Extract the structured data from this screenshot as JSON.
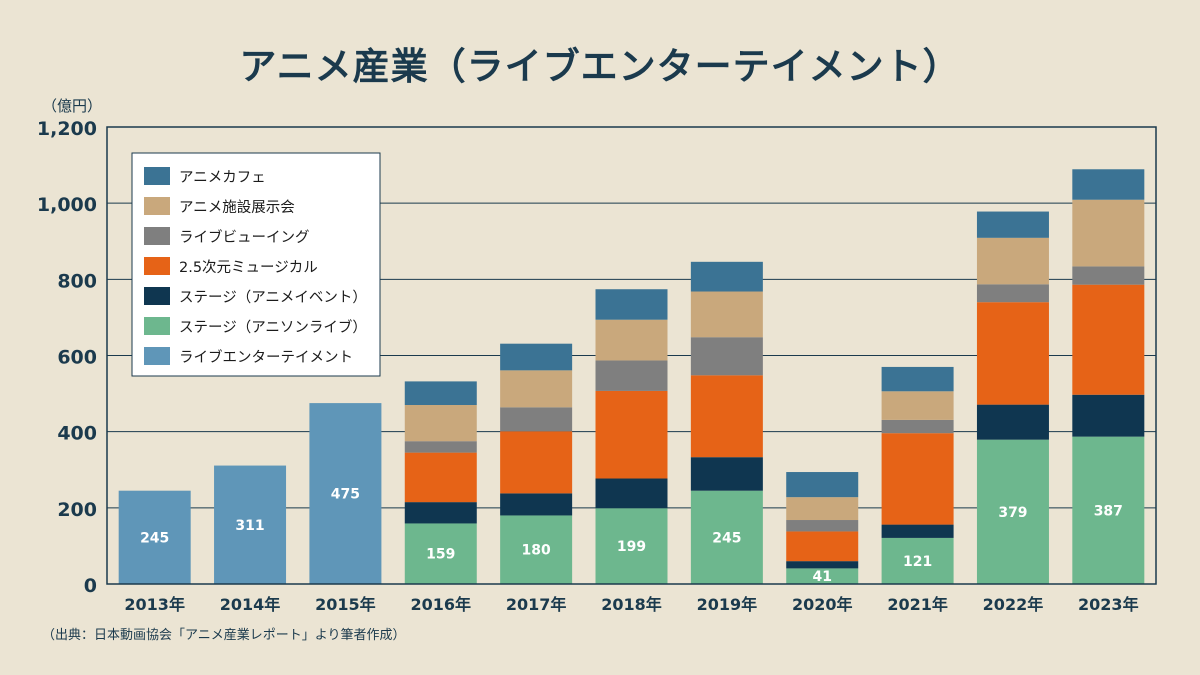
{
  "title": "アニメ産業（ライブエンターテイメント）",
  "unit_label": "（億円）",
  "source_note": "（出典：日本動画協会「アニメ産業レポート」より筆者作成）",
  "chart_data": {
    "type": "bar",
    "stacked": true,
    "title": "アニメ産業（ライブエンターテイメント）",
    "ylabel": "（億円）",
    "xlabel": "",
    "ylim": [
      0,
      1200
    ],
    "yticks": [
      0,
      200,
      400,
      600,
      800,
      1000,
      1200
    ],
    "ytick_labels": [
      "0",
      "200",
      "400",
      "600",
      "800",
      "1,000",
      "1,200"
    ],
    "grid": true,
    "legend_position": "top-left",
    "categories": [
      "2013年",
      "2014年",
      "2015年",
      "2016年",
      "2017年",
      "2018年",
      "2019年",
      "2020年",
      "2021年",
      "2022年",
      "2023年"
    ],
    "series": [
      {
        "name": "ライブエンターテイメント",
        "color": "#5f96b8",
        "values": [
          245,
          311,
          475,
          0,
          0,
          0,
          0,
          0,
          0,
          0,
          0
        ]
      },
      {
        "name": "ステージ（アニソンライブ）",
        "color": "#6db78e",
        "values": [
          0,
          0,
          0,
          159,
          180,
          199,
          245,
          41,
          121,
          379,
          387
        ]
      },
      {
        "name": "ステージ（アニメイベント）",
        "color": "#0f3650",
        "values": [
          0,
          0,
          0,
          56,
          58,
          78,
          88,
          19,
          35,
          92,
          110
        ]
      },
      {
        "name": "2.5次元ミュージカル",
        "color": "#e66317",
        "values": [
          0,
          0,
          0,
          130,
          163,
          230,
          215,
          78,
          240,
          269,
          289
        ]
      },
      {
        "name": "ライブビューイング",
        "color": "#7f7f7f",
        "values": [
          0,
          0,
          0,
          30,
          63,
          80,
          100,
          30,
          35,
          47,
          48
        ]
      },
      {
        "name": "アニメ施設展示会",
        "color": "#c9a87c",
        "values": [
          0,
          0,
          0,
          95,
          97,
          107,
          120,
          60,
          75,
          122,
          175
        ]
      },
      {
        "name": "アニメカフェ",
        "color": "#3b7394",
        "values": [
          0,
          0,
          0,
          62,
          70,
          80,
          78,
          66,
          64,
          69,
          80
        ]
      }
    ],
    "data_labels": {
      "ライブエンターテイメント": [
        "245",
        "311",
        "475",
        "",
        "",
        "",
        "",
        "",
        "",
        "",
        ""
      ],
      "ステージ（アニソンライブ）": [
        "",
        "",
        "",
        "159",
        "180",
        "199",
        "245",
        "41",
        "121",
        "379",
        "387"
      ]
    },
    "legend_order": [
      "アニメカフェ",
      "アニメ施設展示会",
      "ライブビューイング",
      "2.5次元ミュージカル",
      "ステージ（アニメイベント）",
      "ステージ（アニソンライブ）",
      "ライブエンターテイメント"
    ]
  }
}
